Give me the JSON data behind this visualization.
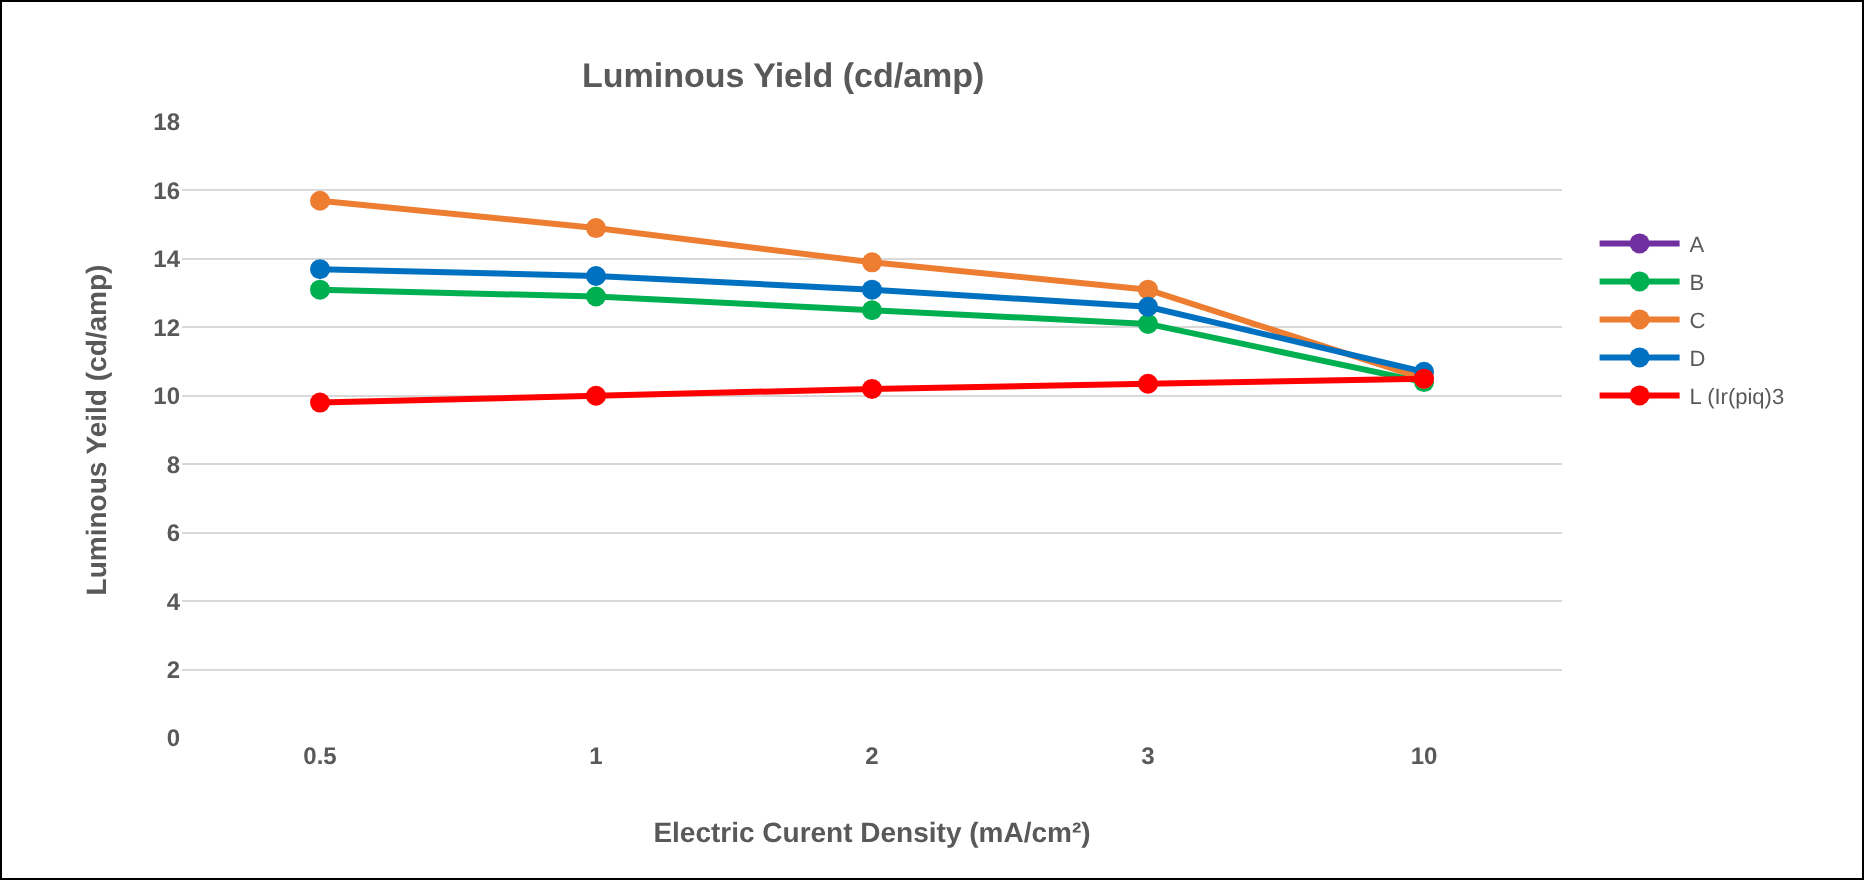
{
  "chart_data": {
    "type": "line",
    "title": "Luminous Yield (cd/amp)",
    "xlabel": "Electric Curent Density (mA/cm²)",
    "ylabel": "Luminous Yeild (cd/amp)",
    "categories": [
      "0.5",
      "1",
      "2",
      "3",
      "10"
    ],
    "series": [
      {
        "name": "A",
        "color": "#7030a0",
        "values": [
          null,
          null,
          null,
          null,
          null
        ]
      },
      {
        "name": "B",
        "color": "#00b050",
        "values": [
          13.1,
          12.9,
          12.5,
          12.1,
          10.4
        ]
      },
      {
        "name": "C",
        "color": "#ed7d31",
        "values": [
          15.7,
          14.9,
          13.9,
          13.1,
          10.5
        ]
      },
      {
        "name": "D",
        "color": "#0070c0",
        "values": [
          13.7,
          13.5,
          13.1,
          12.6,
          10.7
        ]
      },
      {
        "name": "L (Ir(piq)3",
        "color": "#ff0000",
        "values": [
          9.8,
          10.0,
          10.2,
          10.35,
          10.5
        ]
      }
    ],
    "ylim": [
      0,
      18
    ],
    "yticks": [
      0,
      2,
      4,
      6,
      8,
      10,
      12,
      14,
      16,
      18
    ],
    "grid": "y",
    "legend": "right",
    "marker": "circle",
    "line_style": "solid"
  }
}
